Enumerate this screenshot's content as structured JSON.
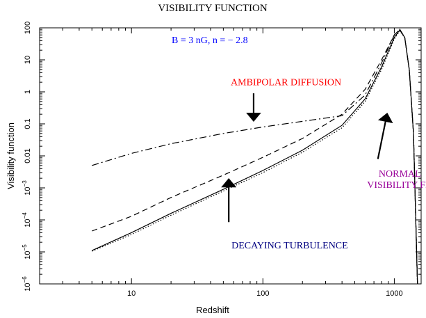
{
  "chart_data": {
    "type": "line",
    "title": "VISIBILITY FUNCTION",
    "xlabel": "Redshift",
    "ylabel": "Visibility function",
    "xscale": "log",
    "yscale": "log",
    "xlim": [
      2,
      1600
    ],
    "ylim": [
      1e-06,
      100
    ],
    "grid": false,
    "x_ticks": [
      {
        "value": 10,
        "label": "10"
      },
      {
        "value": 100,
        "label": "100"
      },
      {
        "value": 1000,
        "label": "1000"
      }
    ],
    "y_ticks": [
      {
        "value": 100,
        "base": "100",
        "exp": ""
      },
      {
        "value": 10,
        "base": "10",
        "exp": ""
      },
      {
        "value": 1,
        "base": "1",
        "exp": ""
      },
      {
        "value": 0.1,
        "base": "0.1",
        "exp": ""
      },
      {
        "value": 0.01,
        "base": "0.01",
        "exp": ""
      },
      {
        "value": 0.001,
        "base": "10",
        "exp": "−3"
      },
      {
        "value": 0.0001,
        "base": "10",
        "exp": "−4"
      },
      {
        "value": 1e-05,
        "base": "10",
        "exp": "−5"
      },
      {
        "value": 1e-06,
        "base": "10",
        "exp": "−6"
      }
    ],
    "params_label": "B = 3 nG,  n = − 2.8",
    "series": [
      {
        "name": "AMBIPOLAR DIFFUSION",
        "style": "dashdot",
        "color": "#000000",
        "x": [
          5,
          10,
          20,
          50,
          100,
          200,
          400,
          600,
          800,
          1000,
          1100,
          1200,
          1300,
          1400,
          1500
        ],
        "y": [
          0.005,
          0.012,
          0.024,
          0.05,
          0.08,
          0.12,
          0.18,
          0.8,
          8,
          60,
          90,
          50,
          5,
          0.05,
          1e-06
        ]
      },
      {
        "name": "DECAYING TURBULENCE",
        "style": "dashed",
        "color": "#000000",
        "x": [
          5,
          10,
          20,
          50,
          100,
          200,
          400,
          600,
          800,
          1000,
          1100,
          1200,
          1300,
          1400,
          1500
        ],
        "y": [
          4.5e-05,
          0.00013,
          0.0005,
          0.0025,
          0.009,
          0.035,
          0.2,
          1.2,
          10,
          60,
          90,
          50,
          5,
          0.05,
          1e-06
        ]
      },
      {
        "name": "NORMAL VISIBILITY FN",
        "style": "solid",
        "color": "#000000",
        "x": [
          5,
          10,
          20,
          50,
          100,
          200,
          400,
          600,
          800,
          1000,
          1100,
          1200,
          1300,
          1400,
          1500
        ],
        "y": [
          1.1e-05,
          4e-05,
          0.00016,
          0.0009,
          0.0035,
          0.015,
          0.09,
          0.6,
          6,
          50,
          85,
          50,
          5,
          0.05,
          1e-06
        ]
      },
      {
        "name": "",
        "style": "dotted",
        "color": "#000000",
        "x": [
          5,
          10,
          20,
          50,
          100,
          200,
          400,
          600,
          800,
          1000,
          1100,
          1200,
          1300,
          1400,
          1500
        ],
        "y": [
          1.05e-05,
          3.5e-05,
          0.00014,
          0.0008,
          0.003,
          0.013,
          0.075,
          0.5,
          5,
          45,
          80,
          50,
          5,
          0.05,
          1e-06
        ]
      }
    ],
    "annotations": [
      {
        "id": "ambipolar",
        "text": [
          "AMBIPOLAR DIFFUSION"
        ],
        "color": "#ff0000",
        "text_at": [
          150,
          1.6
        ],
        "arrow_from": [
          85,
          0.9
        ],
        "arrow_to": [
          85,
          0.13
        ]
      },
      {
        "id": "decaying",
        "text": [
          "DECAYING TURBULENCE"
        ],
        "color": "#000080",
        "text_at": [
          160,
          1.3e-05
        ],
        "arrow_from": [
          55,
          8.5e-05
        ],
        "arrow_to": [
          55,
          0.0018
        ]
      },
      {
        "id": "normal",
        "text": [
          "NORMAL",
          "VISIBILITY FN"
        ],
        "color": "#990099",
        "text_at": [
          1100,
          0.0022
        ],
        "arrow_from": [
          750,
          0.008
        ],
        "arrow_to": [
          880,
          0.2
        ]
      }
    ],
    "colors": {
      "title": "#000000",
      "params": "#0000ff"
    }
  }
}
